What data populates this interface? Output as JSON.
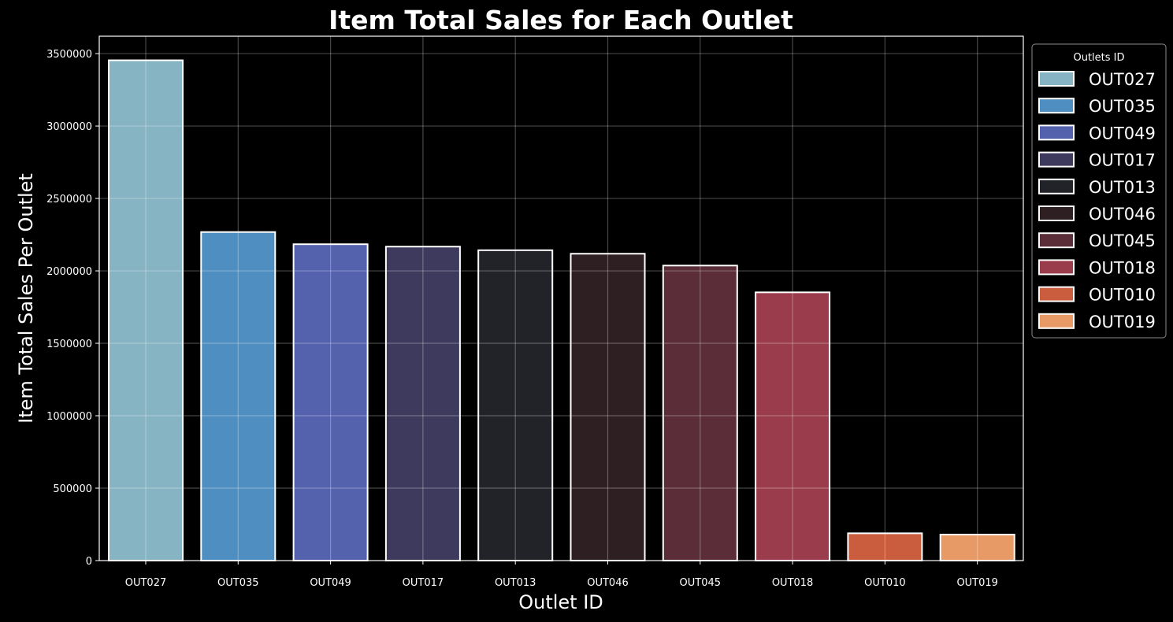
{
  "chart_data": {
    "type": "bar",
    "title": "Item Total Sales for Each Outlet",
    "xlabel": "Outlet ID",
    "ylabel": "Item Total Sales Per Outlet",
    "categories": [
      "OUT027",
      "OUT035",
      "OUT049",
      "OUT017",
      "OUT013",
      "OUT046",
      "OUT045",
      "OUT018",
      "OUT010",
      "OUT019"
    ],
    "values": [
      3453926,
      2268123,
      2183970,
      2167465,
      2142664,
      2118395,
      2036725,
      1851823,
      188340,
      179694
    ],
    "colors": [
      "#86b4c3",
      "#4f8ec0",
      "#5461ad",
      "#3e3a5e",
      "#222328",
      "#2e1f22",
      "#5b2d38",
      "#9b3c4c",
      "#cb5d3f",
      "#e89a66"
    ],
    "ylim": [
      0,
      3620000
    ],
    "yticks": [
      0,
      500000,
      1000000,
      1500000,
      2000000,
      2500000,
      3000000,
      3500000
    ],
    "ytick_labels": [
      "0",
      "500000",
      "1000000",
      "1500000",
      "2000000",
      "2500000",
      "3000000",
      "3500000"
    ],
    "grid": true,
    "legend": {
      "title": "Outlets ID",
      "placement": "outside-top-right",
      "entries": [
        "OUT027",
        "OUT035",
        "OUT049",
        "OUT017",
        "OUT013",
        "OUT046",
        "OUT045",
        "OUT018",
        "OUT010",
        "OUT019"
      ]
    }
  }
}
